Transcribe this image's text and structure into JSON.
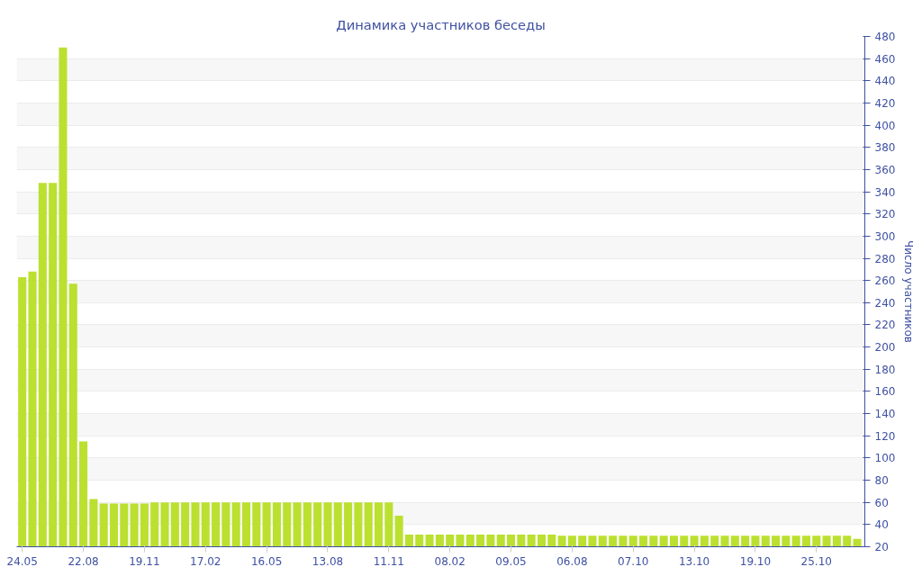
{
  "chart_data": {
    "type": "bar",
    "title": "Динамика участников беседы",
    "ylabel": "Число участников",
    "categories": [
      "24.05",
      null,
      null,
      null,
      null,
      null,
      "22.08",
      null,
      null,
      null,
      null,
      null,
      "19.11",
      null,
      null,
      null,
      null,
      null,
      "17.02",
      null,
      null,
      null,
      null,
      null,
      "16.05",
      null,
      null,
      null,
      null,
      null,
      "13.08",
      null,
      null,
      null,
      null,
      null,
      "11.11",
      null,
      null,
      null,
      null,
      null,
      "08.02",
      null,
      null,
      null,
      null,
      null,
      "09.05",
      null,
      null,
      null,
      null,
      null,
      "06.08",
      null,
      null,
      null,
      null,
      null,
      "07.10",
      null,
      null,
      null,
      null,
      null,
      "13.10",
      null,
      null,
      null,
      null,
      null,
      "19.10",
      null,
      null,
      null,
      null,
      null,
      "25.10",
      null,
      null,
      null,
      null
    ],
    "values": [
      263,
      268,
      348,
      348,
      470,
      257,
      115,
      63,
      59,
      59,
      59,
      59,
      59,
      60,
      60,
      60,
      60,
      60,
      60,
      60,
      60,
      60,
      60,
      60,
      60,
      60,
      60,
      60,
      60,
      60,
      60,
      60,
      60,
      60,
      60,
      60,
      60,
      48,
      31,
      31,
      31,
      31,
      31,
      31,
      31,
      31,
      31,
      31,
      31,
      31,
      31,
      31,
      31,
      30,
      30,
      30,
      30,
      30,
      30,
      30,
      30,
      30,
      30,
      30,
      30,
      30,
      30,
      30,
      30,
      30,
      30,
      30,
      30,
      30,
      30,
      30,
      30,
      30,
      30,
      30,
      30,
      30,
      27
    ],
    "color": "#bbe02f",
    "ylim": [
      20,
      480
    ],
    "yticks": [
      20,
      40,
      60,
      80,
      100,
      120,
      140,
      160,
      180,
      200,
      220,
      240,
      260,
      280,
      300,
      320,
      340,
      360,
      380,
      400,
      420,
      440,
      460,
      480
    ],
    "grid": "y"
  }
}
